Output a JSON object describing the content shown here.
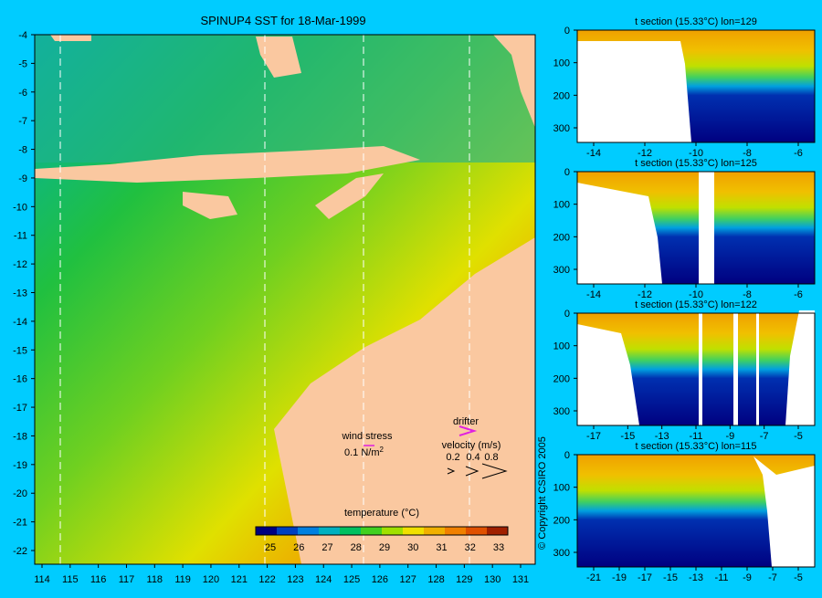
{
  "main": {
    "title": "SPINUP4 SST for 18-Mar-1999",
    "lat_ticks": [
      "-4",
      "-5",
      "-6",
      "-7",
      "-8",
      "-9",
      "-10",
      "-11",
      "-12",
      "-13",
      "-14",
      "-15",
      "-16",
      "-17",
      "-18",
      "-19",
      "-20",
      "-21",
      "-22"
    ],
    "lon_ticks": [
      "114",
      "115",
      "116",
      "117",
      "118",
      "119",
      "120",
      "121",
      "122",
      "123",
      "124",
      "125",
      "126",
      "127",
      "128",
      "129",
      "130",
      "131"
    ],
    "wind_stress_label": "wind stress",
    "wind_stress_value": "0.1 N/m",
    "wind_stress_exp": "2",
    "drifter_label": "drifter",
    "velocity_label": "velocity (m/s)",
    "velocity_ticks": [
      "0.2",
      "0.4",
      "0.8"
    ],
    "colorbar_title": "temperature (°C)",
    "colorbar_ticks": [
      "25",
      "26",
      "27",
      "28",
      "29",
      "30",
      "31",
      "32",
      "33"
    ],
    "colorbar_colors": [
      "#000080",
      "#0040c0",
      "#0080e0",
      "#00b0c0",
      "#00c060",
      "#40d020",
      "#a0e000",
      "#f0e000",
      "#f0b000",
      "#f08000",
      "#e05000",
      "#a02000"
    ],
    "copyright": "© Copyright CSIRO 2005",
    "colors": {
      "land": "#fac8a0",
      "background": "#00ccff"
    }
  },
  "sections": [
    {
      "title": "t section (15.33°C) lon=129",
      "y_ticks": [
        "0",
        "100",
        "200",
        "300"
      ],
      "x_ticks": [
        "-14",
        "-12",
        "-10",
        "-8",
        "-6"
      ]
    },
    {
      "title": "t section (15.33°C) lon=125",
      "y_ticks": [
        "0",
        "100",
        "200",
        "300"
      ],
      "x_ticks": [
        "-14",
        "-12",
        "-10",
        "-8",
        "-6"
      ]
    },
    {
      "title": "t section (15.33°C) lon=122",
      "y_ticks": [
        "0",
        "100",
        "200",
        "300"
      ],
      "x_ticks": [
        "-17",
        "-15",
        "-13",
        "-11",
        "-9",
        "-7",
        "-5"
      ]
    },
    {
      "title": "t section (15.33°C) lon=115",
      "y_ticks": [
        "0",
        "100",
        "200",
        "300"
      ],
      "x_ticks": [
        "-21",
        "-19",
        "-17",
        "-15",
        "-13",
        "-11",
        "-9",
        "-7",
        "-5"
      ]
    }
  ]
}
